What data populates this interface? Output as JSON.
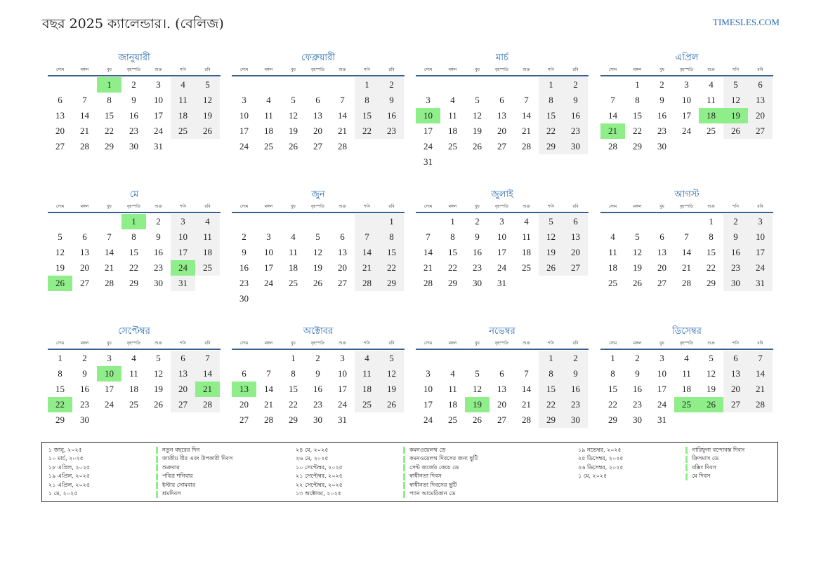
{
  "header": {
    "title": "বছর 2025 ক্যালেন্ডার।. (বেলিজ)",
    "site": "TIMESLES.COM"
  },
  "weekdays": [
    "সোম",
    "মঙ্গল",
    "বুধ",
    "বৃহস্পতি",
    "শুক্র",
    "শনি",
    "রবি"
  ],
  "colors": {
    "accent": "#2a6ab0",
    "holiday": "#90ee8a",
    "weekend": "#f1f1f1",
    "rule": "#3a5f8f"
  },
  "months": [
    {
      "name": "জানুয়ারী",
      "offset": 2,
      "days": 31,
      "holidays": [
        1
      ]
    },
    {
      "name": "ফেব্রুয়ারী",
      "offset": 5,
      "days": 28,
      "holidays": []
    },
    {
      "name": "মার্চ",
      "offset": 5,
      "days": 31,
      "holidays": [
        10
      ]
    },
    {
      "name": "এপ্রিল",
      "offset": 1,
      "days": 30,
      "holidays": [
        18,
        19,
        21
      ]
    },
    {
      "name": "মে",
      "offset": 3,
      "days": 31,
      "holidays": [
        1,
        24,
        26
      ]
    },
    {
      "name": "জুন",
      "offset": 6,
      "days": 30,
      "holidays": []
    },
    {
      "name": "জুলাই",
      "offset": 1,
      "days": 31,
      "holidays": []
    },
    {
      "name": "আগস্ট",
      "offset": 4,
      "days": 31,
      "holidays": []
    },
    {
      "name": "সেপ্টেম্বর",
      "offset": 0,
      "days": 30,
      "holidays": [
        10,
        21,
        22
      ]
    },
    {
      "name": "অক্টোবর",
      "offset": 2,
      "days": 31,
      "holidays": [
        13
      ]
    },
    {
      "name": "নভেম্বর",
      "offset": 5,
      "days": 30,
      "holidays": [
        19
      ]
    },
    {
      "name": "ডিসেম্বর",
      "offset": 0,
      "days": 31,
      "holidays": [
        25,
        26
      ]
    }
  ],
  "legend": [
    [
      {
        "date": "১ জানু, ২০২৫",
        "name": "নতুন বছরের দিন"
      },
      {
        "date": "১০ মার্চ, ২০২৫",
        "name": "জাতীয় বীর এবং উপকারী দিবস"
      },
      {
        "date": "১৮ এপ্রিল, ২০২৫",
        "name": "শুক্রবার"
      },
      {
        "date": "১৯ এপ্রিল, ২০২৫",
        "name": "পবিত্র শনিবার"
      },
      {
        "date": "২১ এপ্রিল, ২০২৫",
        "name": "ইস্টার সোমবার"
      },
      {
        "date": "১ মে, ২০২৫",
        "name": "শ্রমদিবস"
      }
    ],
    [
      {
        "date": "২৪ মে, ২০২৫",
        "name": "কমনওয়েলথ ডে"
      },
      {
        "date": "২৬ মে, ২০২৫",
        "name": "কমনওয়েলথ দিবসের জন্য ছুটি"
      },
      {
        "date": "১০ সেপ্টেম্বর, ২০২৫",
        "name": "সেন্ট জর্জের কেয়ে ডে"
      },
      {
        "date": "২১ সেপ্টেম্বর, ২০২৫",
        "name": "স্বাধীনতা দিবস"
      },
      {
        "date": "২২ সেপ্টেম্বর, ২০২৫",
        "name": "স্বাধীনতা দিবসের ছুটি"
      },
      {
        "date": "১৩ অক্টোবর, ২০২৫",
        "name": "প্যান আমেরিকান ডে"
      }
    ],
    [
      {
        "date": "১৯ নভেম্বর, ২০২৫",
        "name": "গারিফুনা বন্দোবস্ত দিবস"
      },
      {
        "date": "২৫ ডিসেম্বর, ২০২৫",
        "name": "ক্রিসমাস ডে"
      },
      {
        "date": "২৬ ডিসেম্বর, ২০২৫",
        "name": "বক্সিং দিবস"
      },
      {
        "date": "১ মে, ২০২৫",
        "name": "মে দিবস"
      }
    ]
  ]
}
